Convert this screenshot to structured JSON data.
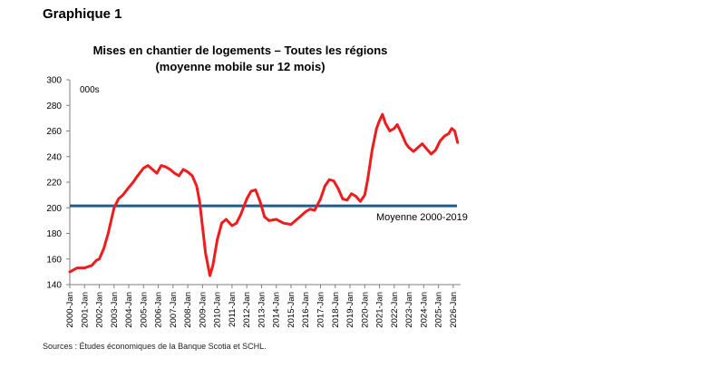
{
  "figure_label": "Graphique 1",
  "source_note": "Sources :  Études économiques de la Banque Scotia et SCHL.",
  "colors": {
    "series": "#ee1c1c",
    "average": "#215d8c",
    "axis": "#7f7f7f",
    "text": "#000000"
  },
  "chart_data": {
    "type": "line",
    "title": "Mises en chantier de logements – Toutes les régions",
    "subtitle": "(moyenne mobile sur 12 mois)",
    "unit_label": "000s",
    "xlabel": "",
    "ylabel": "",
    "ylim": [
      140,
      300
    ],
    "yticks": [
      140,
      160,
      180,
      200,
      220,
      240,
      260,
      280,
      300
    ],
    "xlim": [
      2000.0,
      2026.5
    ],
    "xticks": [
      "2000-Jan",
      "2001-Jan",
      "2002-Jan",
      "2003-Jan",
      "2004-Jan",
      "2005-Jan",
      "2006-Jan",
      "2007-Jan",
      "2008-Jan",
      "2009-Jan",
      "2010-Jan",
      "2011-Jan",
      "2012-Jan",
      "2013-Jan",
      "2014-Jan",
      "2015-Jan",
      "2016-Jan",
      "2017-Jan",
      "2018-Jan",
      "2019-Jan",
      "2020-Jan",
      "2021-Jan",
      "2022-Jan",
      "2023-Jan",
      "2024-Jan",
      "2025-Jan",
      "2026-Jan"
    ],
    "grid": false,
    "series": [
      {
        "name": "",
        "points": [
          [
            2000.0,
            150
          ],
          [
            2000.5,
            153
          ],
          [
            2001.0,
            153
          ],
          [
            2001.5,
            155
          ],
          [
            2001.8,
            159
          ],
          [
            2002.0,
            160
          ],
          [
            2002.3,
            168
          ],
          [
            2002.6,
            180
          ],
          [
            2003.0,
            200
          ],
          [
            2003.3,
            207
          ],
          [
            2003.6,
            210
          ],
          [
            2004.0,
            216
          ],
          [
            2004.3,
            220
          ],
          [
            2004.6,
            225
          ],
          [
            2005.0,
            231
          ],
          [
            2005.3,
            233
          ],
          [
            2005.6,
            230
          ],
          [
            2005.9,
            227
          ],
          [
            2006.2,
            233
          ],
          [
            2006.5,
            232
          ],
          [
            2006.8,
            230
          ],
          [
            2007.1,
            227
          ],
          [
            2007.4,
            225
          ],
          [
            2007.7,
            230
          ],
          [
            2008.0,
            228
          ],
          [
            2008.3,
            225
          ],
          [
            2008.6,
            217
          ],
          [
            2008.8,
            205
          ],
          [
            2009.0,
            185
          ],
          [
            2009.2,
            165
          ],
          [
            2009.5,
            147
          ],
          [
            2009.7,
            155
          ],
          [
            2010.0,
            175
          ],
          [
            2010.3,
            188
          ],
          [
            2010.6,
            191
          ],
          [
            2011.0,
            186
          ],
          [
            2011.3,
            188
          ],
          [
            2011.6,
            195
          ],
          [
            2012.0,
            207
          ],
          [
            2012.3,
            213
          ],
          [
            2012.6,
            214
          ],
          [
            2012.9,
            205
          ],
          [
            2013.2,
            193
          ],
          [
            2013.5,
            190
          ],
          [
            2014.0,
            191
          ],
          [
            2014.5,
            188
          ],
          [
            2015.0,
            187
          ],
          [
            2015.5,
            192
          ],
          [
            2016.0,
            197
          ],
          [
            2016.3,
            199
          ],
          [
            2016.6,
            198
          ],
          [
            2017.0,
            207
          ],
          [
            2017.3,
            217
          ],
          [
            2017.6,
            222
          ],
          [
            2017.9,
            221
          ],
          [
            2018.2,
            215
          ],
          [
            2018.5,
            207
          ],
          [
            2018.8,
            206
          ],
          [
            2019.1,
            211
          ],
          [
            2019.4,
            209
          ],
          [
            2019.7,
            205
          ],
          [
            2020.0,
            210
          ],
          [
            2020.2,
            222
          ],
          [
            2020.5,
            245
          ],
          [
            2020.8,
            262
          ],
          [
            2021.0,
            268
          ],
          [
            2021.2,
            273
          ],
          [
            2021.4,
            266
          ],
          [
            2021.7,
            260
          ],
          [
            2022.0,
            262
          ],
          [
            2022.2,
            265
          ],
          [
            2022.5,
            258
          ],
          [
            2022.8,
            250
          ],
          [
            2023.0,
            247
          ],
          [
            2023.3,
            244
          ],
          [
            2023.6,
            247
          ],
          [
            2023.9,
            250
          ],
          [
            2024.2,
            246
          ],
          [
            2024.5,
            242
          ],
          [
            2024.8,
            245
          ],
          [
            2025.1,
            252
          ],
          [
            2025.4,
            256
          ],
          [
            2025.7,
            258
          ],
          [
            2025.9,
            262
          ],
          [
            2026.1,
            260
          ],
          [
            2026.3,
            251
          ]
        ]
      }
    ],
    "reference_lines": [
      {
        "label": "Moyenne 2000-2019",
        "y": 201.5
      }
    ]
  }
}
